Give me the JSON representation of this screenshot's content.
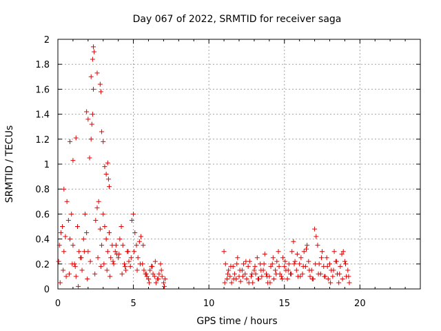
{
  "chart_data": {
    "type": "scatter",
    "title": "Day 067 of 2022, SRMTID for receiver saga",
    "xlabel": "GPS time / hours",
    "ylabel": "SRMTID / TECUs",
    "xlim": [
      0,
      24
    ],
    "ylim": [
      0,
      2
    ],
    "xticks": [
      0,
      5,
      10,
      15,
      20
    ],
    "xtick_labels": [
      "0",
      "5",
      "10",
      "15",
      "20"
    ],
    "yticks": [
      0,
      0.2,
      0.4,
      0.6,
      0.8,
      1,
      1.2,
      1.4,
      1.6,
      1.8,
      2
    ],
    "ytick_labels": [
      "0",
      "0.2",
      "0.4",
      "0.6",
      "0.8",
      "1",
      "1.2",
      "1.4",
      "1.6",
      "1.8",
      "2"
    ],
    "grid": true,
    "marker": "+",
    "series_color": "#e00000",
    "series": [
      {
        "name": "SRMTID",
        "x": [
          0.05,
          0.1,
          0.2,
          0.3,
          0.4,
          0.5,
          0.6,
          0.7,
          0.8,
          0.9,
          1.0,
          1.1,
          1.2,
          1.3,
          1.4,
          1.5,
          1.6,
          1.7,
          1.8,
          1.9,
          2.0,
          2.1,
          2.2,
          2.25,
          2.3,
          2.35,
          2.4,
          2.5,
          2.6,
          2.7,
          2.8,
          2.9,
          3.0,
          3.1,
          3.2,
          3.3,
          3.4,
          3.5,
          3.6,
          3.7,
          3.8,
          3.9,
          4.0,
          4.1,
          4.2,
          4.3,
          4.4,
          4.5,
          4.6,
          4.7,
          4.8,
          4.9,
          5.0,
          5.1,
          5.2,
          5.3,
          5.4,
          5.5,
          5.6,
          5.7,
          5.8,
          5.9,
          6.0,
          6.1,
          6.2,
          6.3,
          6.4,
          6.5,
          6.6,
          6.7,
          6.8,
          6.9,
          7.0,
          7.1,
          0.15,
          0.35,
          0.55,
          0.75,
          0.95,
          1.15,
          1.35,
          1.55,
          1.75,
          1.95,
          2.15,
          2.45,
          2.65,
          2.85,
          3.05,
          3.25,
          3.45,
          3.65,
          3.85,
          4.05,
          4.25,
          4.45,
          4.65,
          4.85,
          5.05,
          5.25,
          5.45,
          5.65,
          5.85,
          6.05,
          6.25,
          6.45,
          6.65,
          6.85,
          7.05,
          0.4,
          0.8,
          1.0,
          1.2,
          1.9,
          2.0,
          2.2,
          2.3,
          2.35,
          2.6,
          2.8,
          2.85,
          2.9,
          3.0,
          3.1,
          3.2,
          3.3,
          3.35,
          3.4,
          11.0,
          11.1,
          11.2,
          11.3,
          11.4,
          11.5,
          11.6,
          11.7,
          11.8,
          11.9,
          12.0,
          12.1,
          12.2,
          12.3,
          12.4,
          12.5,
          12.6,
          12.7,
          12.8,
          12.9,
          13.0,
          13.1,
          13.2,
          13.3,
          13.4,
          13.5,
          13.6,
          13.7,
          13.8,
          13.9,
          14.0,
          14.1,
          14.2,
          14.3,
          14.4,
          14.5,
          14.6,
          14.7,
          14.8,
          14.9,
          15.0,
          15.1,
          15.2,
          15.3,
          15.4,
          15.5,
          15.6,
          15.7,
          15.8,
          15.9,
          16.0,
          16.1,
          16.2,
          16.3,
          16.4,
          16.5,
          16.6,
          16.7,
          16.8,
          16.9,
          17.0,
          17.1,
          17.2,
          17.3,
          17.4,
          17.5,
          17.6,
          17.7,
          17.8,
          17.9,
          18.0,
          18.1,
          18.2,
          18.3,
          18.4,
          18.5,
          18.6,
          18.7,
          18.8,
          18.9,
          19.0,
          19.1,
          19.2,
          19.3,
          11.05,
          11.25,
          11.45,
          11.65,
          11.85,
          12.05,
          12.25,
          12.45,
          12.65,
          12.85,
          13.05,
          13.25,
          13.45,
          13.65,
          13.85,
          14.05,
          14.25,
          14.45,
          14.65,
          14.85,
          15.05,
          15.25,
          15.45,
          15.65,
          15.85,
          16.05,
          16.25,
          16.45,
          16.65,
          16.85,
          17.05,
          17.25,
          17.45,
          17.65,
          17.85,
          18.05,
          18.25,
          18.45,
          18.65,
          18.85,
          19.05,
          19.25
        ],
        "y": [
          0.22,
          0.35,
          0.45,
          0.5,
          0.3,
          0.42,
          0.7,
          0.55,
          0.4,
          0.6,
          0.35,
          0.2,
          0.1,
          0.5,
          0.3,
          0.25,
          0.15,
          0.4,
          0.6,
          0.45,
          0.3,
          1.05,
          1.2,
          1.32,
          1.4,
          1.6,
          1.9,
          0.55,
          0.65,
          0.7,
          0.48,
          0.35,
          0.6,
          0.5,
          0.4,
          0.3,
          0.45,
          0.25,
          0.35,
          0.2,
          0.3,
          0.28,
          0.25,
          0.4,
          0.5,
          0.35,
          0.2,
          0.15,
          0.3,
          0.22,
          0.18,
          0.55,
          0.6,
          0.45,
          0.35,
          0.25,
          0.38,
          0.42,
          0.2,
          0.15,
          0.12,
          0.1,
          0.08,
          0.15,
          0.18,
          0.12,
          0.1,
          0.05,
          0.08,
          0.12,
          0.2,
          0.1,
          0.05,
          0.08,
          0.05,
          0.15,
          0.1,
          0.12,
          0.2,
          0.18,
          0.02,
          0.25,
          0.3,
          0.08,
          0.22,
          0.12,
          0.25,
          0.18,
          0.2,
          0.15,
          0.1,
          0.22,
          0.35,
          0.28,
          0.12,
          0.18,
          0.3,
          0.25,
          0.3,
          0.15,
          0.2,
          0.35,
          0.12,
          0.05,
          0.18,
          0.22,
          0.08,
          0.15,
          0.02,
          0.8,
          1.18,
          1.03,
          1.21,
          1.42,
          1.36,
          1.7,
          1.84,
          1.94,
          1.73,
          1.64,
          1.58,
          1.26,
          1.18,
          0.98,
          0.92,
          1.01,
          0.88,
          0.82,
          0.3,
          0.2,
          0.08,
          0.15,
          0.1,
          0.05,
          0.18,
          0.12,
          0.08,
          0.25,
          0.1,
          0.06,
          0.15,
          0.2,
          0.12,
          0.08,
          0.18,
          0.22,
          0.1,
          0.05,
          0.15,
          0.12,
          0.25,
          0.08,
          0.2,
          0.1,
          0.15,
          0.28,
          0.12,
          0.05,
          0.1,
          0.18,
          0.2,
          0.08,
          0.15,
          0.22,
          0.3,
          0.12,
          0.1,
          0.25,
          0.18,
          0.15,
          0.08,
          0.2,
          0.12,
          0.3,
          0.38,
          0.22,
          0.15,
          0.1,
          0.2,
          0.25,
          0.12,
          0.3,
          0.18,
          0.35,
          0.22,
          0.1,
          0.15,
          0.08,
          0.48,
          0.42,
          0.35,
          0.2,
          0.12,
          0.3,
          0.18,
          0.1,
          0.25,
          0.08,
          0.2,
          0.15,
          0.1,
          0.3,
          0.22,
          0.12,
          0.05,
          0.18,
          0.28,
          0.3,
          0.22,
          0.1,
          0.15,
          0.05,
          0.05,
          0.12,
          0.18,
          0.08,
          0.2,
          0.15,
          0.1,
          0.22,
          0.05,
          0.12,
          0.18,
          0.08,
          0.15,
          0.2,
          0.1,
          0.05,
          0.25,
          0.12,
          0.18,
          0.08,
          0.22,
          0.15,
          0.12,
          0.2,
          0.28,
          0.1,
          0.18,
          0.32,
          0.15,
          0.08,
          0.2,
          0.12,
          0.25,
          0.1,
          0.18,
          0.05,
          0.15,
          0.22,
          0.12,
          0.08,
          0.2,
          0.1
        ]
      }
    ]
  }
}
